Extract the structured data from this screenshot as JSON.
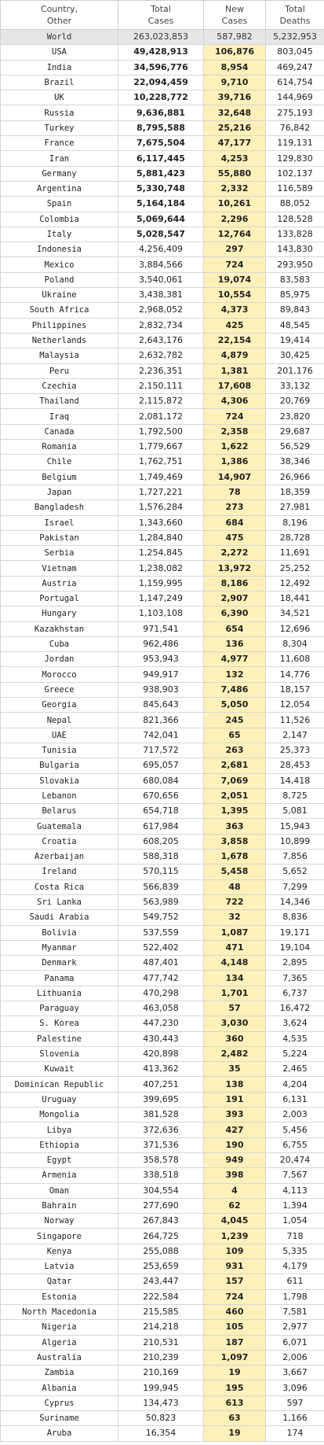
{
  "header": {
    "country_line1": "Country,",
    "country_line2": "Other",
    "cases_line1": "Total",
    "cases_line2": "Cases",
    "new_line1": "New",
    "new_line2": "Cases",
    "deaths_line1": "Total",
    "deaths_line2": "Deaths"
  },
  "world": {
    "country": "World",
    "cases": "263,023,853",
    "new": "587,982",
    "deaths": "5,232,953"
  },
  "colors": {
    "new_cases_bg": "#fdf0b8",
    "world_row_bg": "#e6e6e6"
  },
  "rows": [
    {
      "country": "USA",
      "cases": "49,428,913",
      "new": "106,876",
      "deaths": "803,045"
    },
    {
      "country": "India",
      "cases": "34,596,776",
      "new": "8,954",
      "deaths": "469,247"
    },
    {
      "country": "Brazil",
      "cases": "22,094,459",
      "new": "9,710",
      "deaths": "614,754"
    },
    {
      "country": "UK",
      "cases": "10,228,772",
      "new": "39,716",
      "deaths": "144,969"
    },
    {
      "country": "Russia",
      "cases": "9,636,881",
      "new": "32,648",
      "deaths": "275,193"
    },
    {
      "country": "Turkey",
      "cases": "8,795,588",
      "new": "25,216",
      "deaths": "76,842"
    },
    {
      "country": "France",
      "cases": "7,675,504",
      "new": "47,177",
      "deaths": "119,131"
    },
    {
      "country": "Iran",
      "cases": "6,117,445",
      "new": "4,253",
      "deaths": "129,830"
    },
    {
      "country": "Germany",
      "cases": "5,881,423",
      "new": "55,880",
      "deaths": "102,137"
    },
    {
      "country": "Argentina",
      "cases": "5,330,748",
      "new": "2,332",
      "deaths": "116,589"
    },
    {
      "country": "Spain",
      "cases": "5,164,184",
      "new": "10,261",
      "deaths": "88,052"
    },
    {
      "country": "Colombia",
      "cases": "5,069,644",
      "new": "2,296",
      "deaths": "128,528"
    },
    {
      "country": "Italy",
      "cases": "5,028,547",
      "new": "12,764",
      "deaths": "133,828"
    },
    {
      "country": "Indonesia",
      "cases": "4,256,409",
      "new": "297",
      "deaths": "143,830"
    },
    {
      "country": "Mexico",
      "cases": "3,884,566",
      "new": "724",
      "deaths": "293,950"
    },
    {
      "country": "Poland",
      "cases": "3,540,061",
      "new": "19,074",
      "deaths": "83,583"
    },
    {
      "country": "Ukraine",
      "cases": "3,438,381",
      "new": "10,554",
      "deaths": "85,975"
    },
    {
      "country": "South Africa",
      "cases": "2,968,052",
      "new": "4,373",
      "deaths": "89,843"
    },
    {
      "country": "Philippines",
      "cases": "2,832,734",
      "new": "425",
      "deaths": "48,545"
    },
    {
      "country": "Netherlands",
      "cases": "2,643,176",
      "new": "22,154",
      "deaths": "19,414"
    },
    {
      "country": "Malaysia",
      "cases": "2,632,782",
      "new": "4,879",
      "deaths": "30,425"
    },
    {
      "country": "Peru",
      "cases": "2,236,351",
      "new": "1,381",
      "deaths": "201,176"
    },
    {
      "country": "Czechia",
      "cases": "2,150,111",
      "new": "17,608",
      "deaths": "33,132"
    },
    {
      "country": "Thailand",
      "cases": "2,115,872",
      "new": "4,306",
      "deaths": "20,769"
    },
    {
      "country": "Iraq",
      "cases": "2,081,172",
      "new": "724",
      "deaths": "23,820"
    },
    {
      "country": "Canada",
      "cases": "1,792,500",
      "new": "2,358",
      "deaths": "29,687"
    },
    {
      "country": "Romania",
      "cases": "1,779,667",
      "new": "1,622",
      "deaths": "56,529"
    },
    {
      "country": "Chile",
      "cases": "1,762,751",
      "new": "1,386",
      "deaths": "38,346"
    },
    {
      "country": "Belgium",
      "cases": "1,749,469",
      "new": "14,907",
      "deaths": "26,966"
    },
    {
      "country": "Japan",
      "cases": "1,727,221",
      "new": "78",
      "deaths": "18,359"
    },
    {
      "country": "Bangladesh",
      "cases": "1,576,284",
      "new": "273",
      "deaths": "27,981"
    },
    {
      "country": "Israel",
      "cases": "1,343,660",
      "new": "684",
      "deaths": "8,196"
    },
    {
      "country": "Pakistan",
      "cases": "1,284,840",
      "new": "475",
      "deaths": "28,728"
    },
    {
      "country": "Serbia",
      "cases": "1,254,845",
      "new": "2,272",
      "deaths": "11,691"
    },
    {
      "country": "Vietnam",
      "cases": "1,238,082",
      "new": "13,972",
      "deaths": "25,252"
    },
    {
      "country": "Austria",
      "cases": "1,159,995",
      "new": "8,186",
      "deaths": "12,492"
    },
    {
      "country": "Portugal",
      "cases": "1,147,249",
      "new": "2,907",
      "deaths": "18,441"
    },
    {
      "country": "Hungary",
      "cases": "1,103,108",
      "new": "6,390",
      "deaths": "34,521"
    },
    {
      "country": "Kazakhstan",
      "cases": "971,541",
      "new": "654",
      "deaths": "12,696"
    },
    {
      "country": "Cuba",
      "cases": "962,486",
      "new": "136",
      "deaths": "8,304"
    },
    {
      "country": "Jordan",
      "cases": "953,943",
      "new": "4,977",
      "deaths": "11,608"
    },
    {
      "country": "Morocco",
      "cases": "949,917",
      "new": "132",
      "deaths": "14,776"
    },
    {
      "country": "Greece",
      "cases": "938,903",
      "new": "7,486",
      "deaths": "18,157"
    },
    {
      "country": "Georgia",
      "cases": "845,643",
      "new": "5,050",
      "deaths": "12,054"
    },
    {
      "country": "Nepal",
      "cases": "821,366",
      "new": "245",
      "deaths": "11,526"
    },
    {
      "country": "UAE",
      "cases": "742,041",
      "new": "65",
      "deaths": "2,147"
    },
    {
      "country": "Tunisia",
      "cases": "717,572",
      "new": "263",
      "deaths": "25,373"
    },
    {
      "country": "Bulgaria",
      "cases": "695,057",
      "new": "2,681",
      "deaths": "28,453"
    },
    {
      "country": "Slovakia",
      "cases": "680,084",
      "new": "7,069",
      "deaths": "14,418"
    },
    {
      "country": "Lebanon",
      "cases": "670,656",
      "new": "2,051",
      "deaths": "8,725"
    },
    {
      "country": "Belarus",
      "cases": "654,718",
      "new": "1,395",
      "deaths": "5,081"
    },
    {
      "country": "Guatemala",
      "cases": "617,984",
      "new": "363",
      "deaths": "15,943"
    },
    {
      "country": "Croatia",
      "cases": "608,205",
      "new": "3,858",
      "deaths": "10,899"
    },
    {
      "country": "Azerbaijan",
      "cases": "588,318",
      "new": "1,678",
      "deaths": "7,856"
    },
    {
      "country": "Ireland",
      "cases": "570,115",
      "new": "5,458",
      "deaths": "5,652"
    },
    {
      "country": "Costa Rica",
      "cases": "566,839",
      "new": "48",
      "deaths": "7,299"
    },
    {
      "country": "Sri Lanka",
      "cases": "563,989",
      "new": "722",
      "deaths": "14,346"
    },
    {
      "country": "Saudi Arabia",
      "cases": "549,752",
      "new": "32",
      "deaths": "8,836"
    },
    {
      "country": "Bolivia",
      "cases": "537,559",
      "new": "1,087",
      "deaths": "19,171"
    },
    {
      "country": "Myanmar",
      "cases": "522,402",
      "new": "471",
      "deaths": "19,104"
    },
    {
      "country": "Denmark",
      "cases": "487,401",
      "new": "4,148",
      "deaths": "2,895"
    },
    {
      "country": "Panama",
      "cases": "477,742",
      "new": "134",
      "deaths": "7,365"
    },
    {
      "country": "Lithuania",
      "cases": "470,298",
      "new": "1,701",
      "deaths": "6,737"
    },
    {
      "country": "Paraguay",
      "cases": "463,058",
      "new": "57",
      "deaths": "16,472"
    },
    {
      "country": "S. Korea",
      "cases": "447,230",
      "new": "3,030",
      "deaths": "3,624"
    },
    {
      "country": "Palestine",
      "cases": "430,443",
      "new": "360",
      "deaths": "4,535"
    },
    {
      "country": "Slovenia",
      "cases": "420,898",
      "new": "2,482",
      "deaths": "5,224"
    },
    {
      "country": "Kuwait",
      "cases": "413,362",
      "new": "35",
      "deaths": "2,465"
    },
    {
      "country": "Dominican Republic",
      "cases": "407,251",
      "new": "138",
      "deaths": "4,204"
    },
    {
      "country": "Uruguay",
      "cases": "399,695",
      "new": "191",
      "deaths": "6,131"
    },
    {
      "country": "Mongolia",
      "cases": "381,528",
      "new": "393",
      "deaths": "2,003"
    },
    {
      "country": "Libya",
      "cases": "372,636",
      "new": "427",
      "deaths": "5,456"
    },
    {
      "country": "Ethiopia",
      "cases": "371,536",
      "new": "190",
      "deaths": "6,755"
    },
    {
      "country": "Egypt",
      "cases": "358,578",
      "new": "949",
      "deaths": "20,474"
    },
    {
      "country": "Armenia",
      "cases": "338,518",
      "new": "398",
      "deaths": "7,567"
    },
    {
      "country": "Oman",
      "cases": "304,554",
      "new": "4",
      "deaths": "4,113"
    },
    {
      "country": "Bahrain",
      "cases": "277,690",
      "new": "62",
      "deaths": "1,394"
    },
    {
      "country": "Norway",
      "cases": "267,843",
      "new": "4,045",
      "deaths": "1,054"
    },
    {
      "country": "Singapore",
      "cases": "264,725",
      "new": "1,239",
      "deaths": "718"
    },
    {
      "country": "Kenya",
      "cases": "255,088",
      "new": "109",
      "deaths": "5,335"
    },
    {
      "country": "Latvia",
      "cases": "253,659",
      "new": "931",
      "deaths": "4,179"
    },
    {
      "country": "Qatar",
      "cases": "243,447",
      "new": "157",
      "deaths": "611"
    },
    {
      "country": "Estonia",
      "cases": "222,584",
      "new": "724",
      "deaths": "1,798"
    },
    {
      "country": "North Macedonia",
      "cases": "215,585",
      "new": "460",
      "deaths": "7,581"
    },
    {
      "country": "Nigeria",
      "cases": "214,218",
      "new": "105",
      "deaths": "2,977"
    },
    {
      "country": "Algeria",
      "cases": "210,531",
      "new": "187",
      "deaths": "6,071"
    },
    {
      "country": "Australia",
      "cases": "210,239",
      "new": "1,097",
      "deaths": "2,006"
    },
    {
      "country": "Zambia",
      "cases": "210,169",
      "new": "19",
      "deaths": "3,667"
    },
    {
      "country": "Albania",
      "cases": "199,945",
      "new": "195",
      "deaths": "3,096"
    },
    {
      "country": "Cyprus",
      "cases": "134,473",
      "new": "613",
      "deaths": "597"
    },
    {
      "country": "Suriname",
      "cases": "50,823",
      "new": "63",
      "deaths": "1,166"
    },
    {
      "country": "Aruba",
      "cases": "16,354",
      "new": "19",
      "deaths": "174"
    }
  ]
}
